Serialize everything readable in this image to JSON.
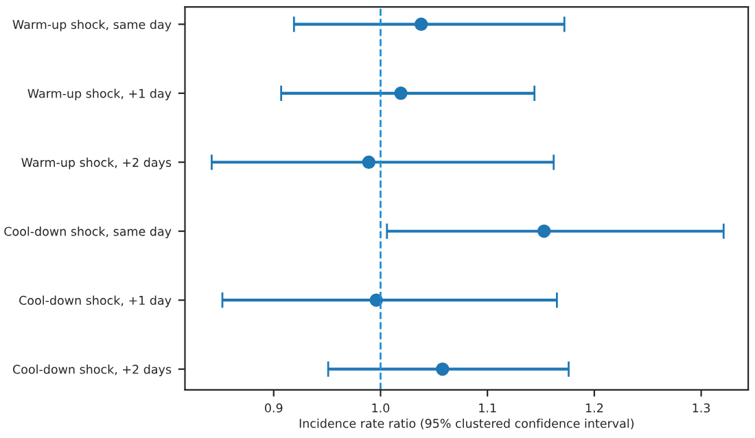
{
  "chart_data": {
    "type": "scatter",
    "orientation": "horizontal",
    "xlabel": "Incidence rate ratio (95% clustered confidence interval)",
    "categories": [
      "Warm-up shock, same day",
      "Warm-up shock, +1 day",
      "Warm-up shock, +2 days",
      "Cool-down shock, same day",
      "Cool-down shock, +1 day",
      "Cool-down shock, +2 days"
    ],
    "values": [
      1.038,
      1.019,
      0.989,
      1.153,
      0.996,
      1.058
    ],
    "errors": [
      [
        0.919,
        1.172
      ],
      [
        0.907,
        1.144
      ],
      [
        0.842,
        1.162
      ],
      [
        1.006,
        1.321
      ],
      [
        0.852,
        1.165
      ],
      [
        0.951,
        1.176
      ]
    ],
    "color": "#1f77b4",
    "marker": "circle",
    "xlim": [
      0.817,
      1.344
    ],
    "xticks": [
      0.9,
      {
        "value": 1.0,
        "label": "1.0"
      },
      1.1,
      1.2,
      1.3
    ],
    "ref_lines": [
      {
        "axis": "x",
        "value": 1.0,
        "color": "#1f8fd6",
        "line_style": "dashed"
      }
    ],
    "grid": false,
    "legend": false
  }
}
